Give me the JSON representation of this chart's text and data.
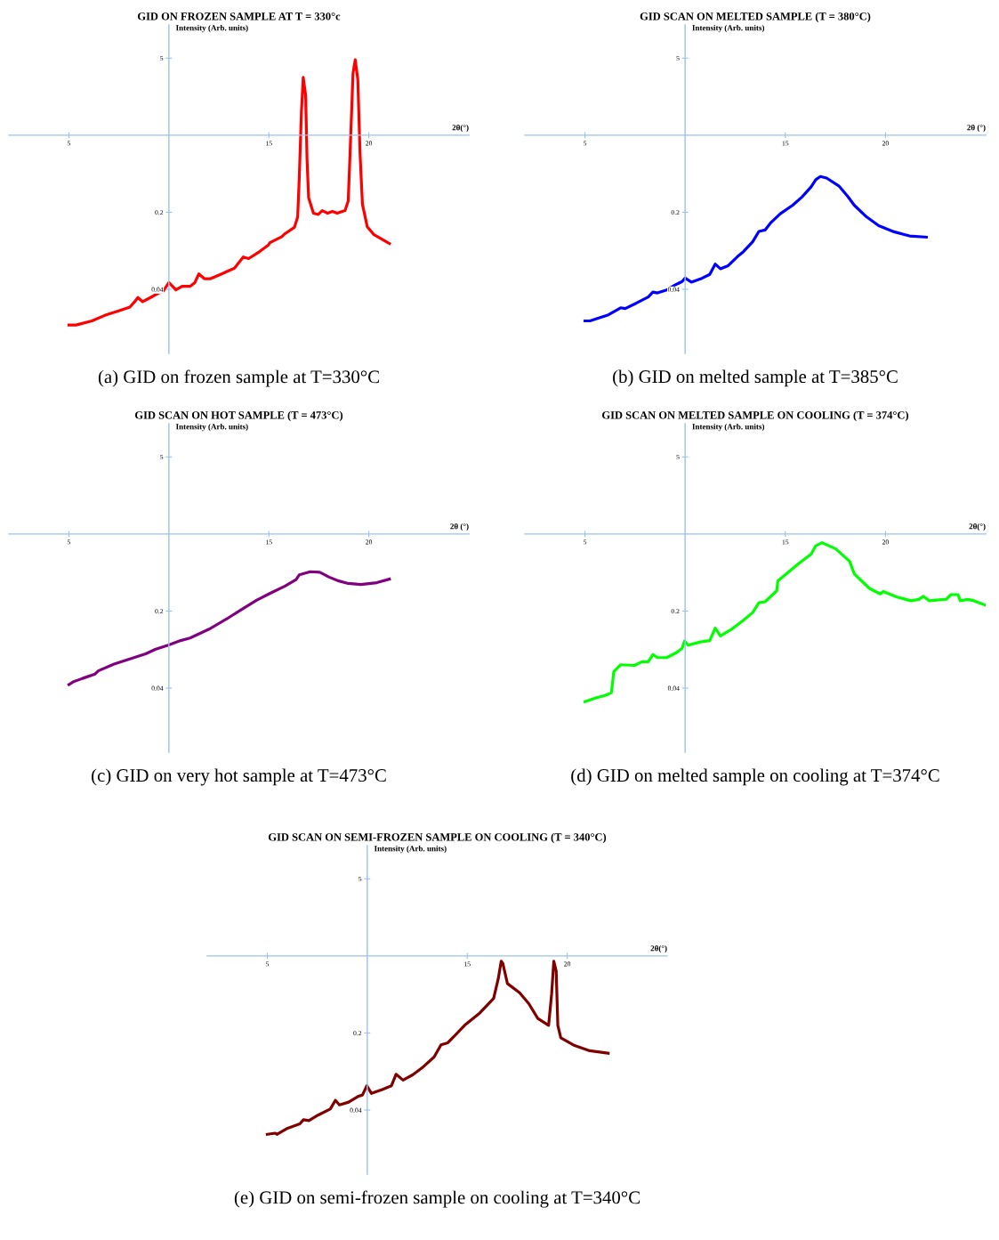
{
  "chart_data": [
    {
      "type": "line",
      "title": "GID ON FROZEN SAMPLE AT T = 330°c",
      "xlabel": "2θ(°)",
      "ylabel": "Intensity (Arb. units)",
      "annotations": [
        "(a) GID on frozen sample at T=330°C"
      ],
      "color": "#ff0000",
      "log": "y",
      "grid": false,
      "xlim": [
        2,
        25
      ],
      "ylim": [
        0.0105,
        10
      ],
      "xticks": [
        5,
        15,
        20
      ],
      "yticks": [
        5,
        0.2,
        0.04
      ],
      "x": [
        5.0,
        5.36,
        6.15,
        6.79,
        7.42,
        8.05,
        8.29,
        8.45,
        8.69,
        9.08,
        9.48,
        9.72,
        10.0,
        10.35,
        10.66,
        11.06,
        11.3,
        11.5,
        11.77,
        12.09,
        12.64,
        13.28,
        13.51,
        13.72,
        13.99,
        14.54,
        14.98,
        15.05,
        15.65,
        15.81,
        16.28,
        16.44,
        16.52,
        16.63,
        16.72,
        16.84,
        16.91,
        16.99,
        17.23,
        17.47,
        17.67,
        17.94,
        18.18,
        18.42,
        18.81,
        18.97,
        19.08,
        19.21,
        19.32,
        19.45,
        19.56,
        19.68,
        19.92,
        20.24,
        21.03
      ],
      "values": [
        0.019,
        0.019,
        0.0207,
        0.0232,
        0.0253,
        0.0276,
        0.0309,
        0.0337,
        0.0309,
        0.0337,
        0.037,
        0.0385,
        0.0461,
        0.0395,
        0.0426,
        0.0426,
        0.0461,
        0.0552,
        0.05,
        0.05,
        0.0552,
        0.0623,
        0.0702,
        0.0786,
        0.076,
        0.0881,
        0.101,
        0.106,
        0.12,
        0.128,
        0.146,
        0.181,
        0.403,
        1.64,
        3.35,
        2.29,
        0.602,
        0.27,
        0.196,
        0.191,
        0.207,
        0.196,
        0.204,
        0.196,
        0.207,
        0.253,
        0.841,
        3.65,
        4.83,
        3.19,
        0.688,
        0.237,
        0.148,
        0.126,
        0.104
      ]
    },
    {
      "type": "line",
      "title": "GID SCAN ON MELTED SAMPLE (T = 380°C)",
      "xlabel": "2θ (°)",
      "ylabel": "Intensity (Arb. units)",
      "annotations": [
        "(b) GID on melted sample at T=385°C"
      ],
      "color": "#0000ff",
      "log": "y",
      "grid": false,
      "xlim": [
        2,
        25
      ],
      "ylim": [
        0.0105,
        10
      ],
      "xticks": [
        5,
        15,
        20
      ],
      "yticks": [
        5,
        0.2,
        0.04
      ],
      "x": [
        5.0,
        5.25,
        5.55,
        6.17,
        6.78,
        7.01,
        7.55,
        8.16,
        8.39,
        8.62,
        9.08,
        9.54,
        9.85,
        10.0,
        10.31,
        10.77,
        11.23,
        11.5,
        11.76,
        12.15,
        12.61,
        12.91,
        13.37,
        13.68,
        13.99,
        14.29,
        14.75,
        15.37,
        15.83,
        16.29,
        16.52,
        16.75,
        17.06,
        17.67,
        18.13,
        18.44,
        19.05,
        19.66,
        20.43,
        21.2,
        22.04
      ],
      "values": [
        0.0207,
        0.0207,
        0.0216,
        0.0235,
        0.0272,
        0.0268,
        0.0299,
        0.0341,
        0.0378,
        0.0371,
        0.0395,
        0.0442,
        0.0471,
        0.0506,
        0.0465,
        0.0497,
        0.0547,
        0.0678,
        0.0615,
        0.0656,
        0.0792,
        0.0879,
        0.108,
        0.134,
        0.138,
        0.162,
        0.194,
        0.232,
        0.275,
        0.34,
        0.395,
        0.422,
        0.409,
        0.347,
        0.277,
        0.232,
        0.182,
        0.151,
        0.133,
        0.122,
        0.119
      ]
    },
    {
      "type": "line",
      "title": "GID SCAN ON HOT SAMPLE (T = 473°C)",
      "xlabel": "2θ (°)",
      "ylabel": "Intensity (Arb. units)",
      "annotations": [
        "(c) GID on very hot sample at T=473°C"
      ],
      "color": "#800080",
      "log": "y",
      "grid": false,
      "xlim": [
        2,
        25
      ],
      "ylim": [
        0.0105,
        10
      ],
      "xticks": [
        5,
        15,
        20
      ],
      "yticks": [
        5,
        0.2,
        0.04
      ],
      "x": [
        5.0,
        5.21,
        5.68,
        6.31,
        6.47,
        7.26,
        8.05,
        8.84,
        9.32,
        10.0,
        10.59,
        11.06,
        12.01,
        12.96,
        13.75,
        14.38,
        15.02,
        15.81,
        16.36,
        16.52,
        17.07,
        17.55,
        18.02,
        18.5,
        18.97,
        19.6,
        20.4,
        21.03
      ],
      "values": [
        0.0431,
        0.0455,
        0.049,
        0.0537,
        0.0574,
        0.0661,
        0.0736,
        0.0819,
        0.0899,
        0.0986,
        0.108,
        0.114,
        0.137,
        0.173,
        0.213,
        0.25,
        0.287,
        0.337,
        0.385,
        0.426,
        0.455,
        0.449,
        0.406,
        0.375,
        0.356,
        0.348,
        0.362,
        0.39
      ]
    },
    {
      "type": "line",
      "title": "GID SCAN ON MELTED SAMPLE ON COOLING (T = 374°C)",
      "xlabel": "2θ(°)",
      "ylabel": "Intensity (Arb. units)",
      "annotations": [
        "(d) GID on melted sample on cooling at T=374°C"
      ],
      "color": "#00ff00",
      "log": "y",
      "grid": false,
      "xlim": [
        2,
        25
      ],
      "ylim": [
        0.0105,
        10
      ],
      "xticks": [
        5,
        15,
        20
      ],
      "yticks": [
        5,
        0.2,
        0.04
      ],
      "x": [
        5.0,
        5.55,
        6.01,
        6.32,
        6.44,
        6.78,
        7.47,
        7.85,
        8.16,
        8.39,
        8.62,
        9.08,
        9.54,
        9.85,
        9.97,
        10.15,
        10.77,
        11.23,
        11.5,
        11.76,
        12.3,
        12.91,
        13.37,
        13.68,
        13.99,
        14.57,
        14.63,
        15.06,
        15.67,
        16.29,
        16.52,
        16.83,
        17.52,
        18.21,
        18.44,
        19.2,
        19.74,
        19.89,
        20.58,
        21.27,
        21.66,
        21.89,
        22.19,
        23.04,
        23.27,
        23.62,
        23.73,
        24.11,
        24.42,
        24.95
      ],
      "values": [
        0.0301,
        0.0326,
        0.0343,
        0.0364,
        0.0565,
        0.0652,
        0.0643,
        0.0695,
        0.0695,
        0.0807,
        0.0757,
        0.0757,
        0.0834,
        0.0919,
        0.107,
        0.0981,
        0.105,
        0.108,
        0.14,
        0.119,
        0.136,
        0.165,
        0.194,
        0.238,
        0.243,
        0.305,
        0.376,
        0.436,
        0.54,
        0.656,
        0.782,
        0.834,
        0.733,
        0.565,
        0.436,
        0.321,
        0.286,
        0.301,
        0.268,
        0.248,
        0.255,
        0.272,
        0.248,
        0.256,
        0.282,
        0.282,
        0.248,
        0.255,
        0.248,
        0.228
      ]
    },
    {
      "type": "line",
      "title": "GID SCAN ON SEMI-FROZEN SAMPLE ON COOLING (T = 340°C)",
      "xlabel": "2θ(°)",
      "ylabel": "Intensity (Arb. units)",
      "annotations": [
        "(e) GID on semi-frozen sample on cooling at T=340°C"
      ],
      "color": "#800000",
      "log": "y",
      "grid": false,
      "xlim": [
        2,
        25
      ],
      "ylim": [
        0.0105,
        10
      ],
      "xticks": [
        5,
        15,
        20
      ],
      "yticks": [
        5,
        0.2,
        0.04
      ],
      "x": [
        5.0,
        5.4,
        5.48,
        6.02,
        6.63,
        6.81,
        7.08,
        7.54,
        8.15,
        8.41,
        8.61,
        9.07,
        9.53,
        9.76,
        9.98,
        10.21,
        10.75,
        11.21,
        11.44,
        11.79,
        12.27,
        12.73,
        13.34,
        13.69,
        14.03,
        14.87,
        15.63,
        16.32,
        16.55,
        16.7,
        16.78,
        17.01,
        17.62,
        18.08,
        18.53,
        19.07,
        19.22,
        19.33,
        19.45,
        19.53,
        19.68,
        20.37,
        21.13,
        22.05
      ],
      "values": [
        0.0241,
        0.0247,
        0.0241,
        0.0274,
        0.03,
        0.0327,
        0.0321,
        0.036,
        0.0409,
        0.0491,
        0.0446,
        0.0472,
        0.0531,
        0.0548,
        0.0665,
        0.0566,
        0.0615,
        0.0665,
        0.0845,
        0.0748,
        0.0834,
        0.0962,
        0.121,
        0.156,
        0.163,
        0.235,
        0.304,
        0.412,
        0.619,
        0.896,
        0.857,
        0.562,
        0.463,
        0.369,
        0.271,
        0.235,
        0.449,
        0.896,
        0.728,
        0.235,
        0.181,
        0.154,
        0.138,
        0.131
      ]
    }
  ]
}
